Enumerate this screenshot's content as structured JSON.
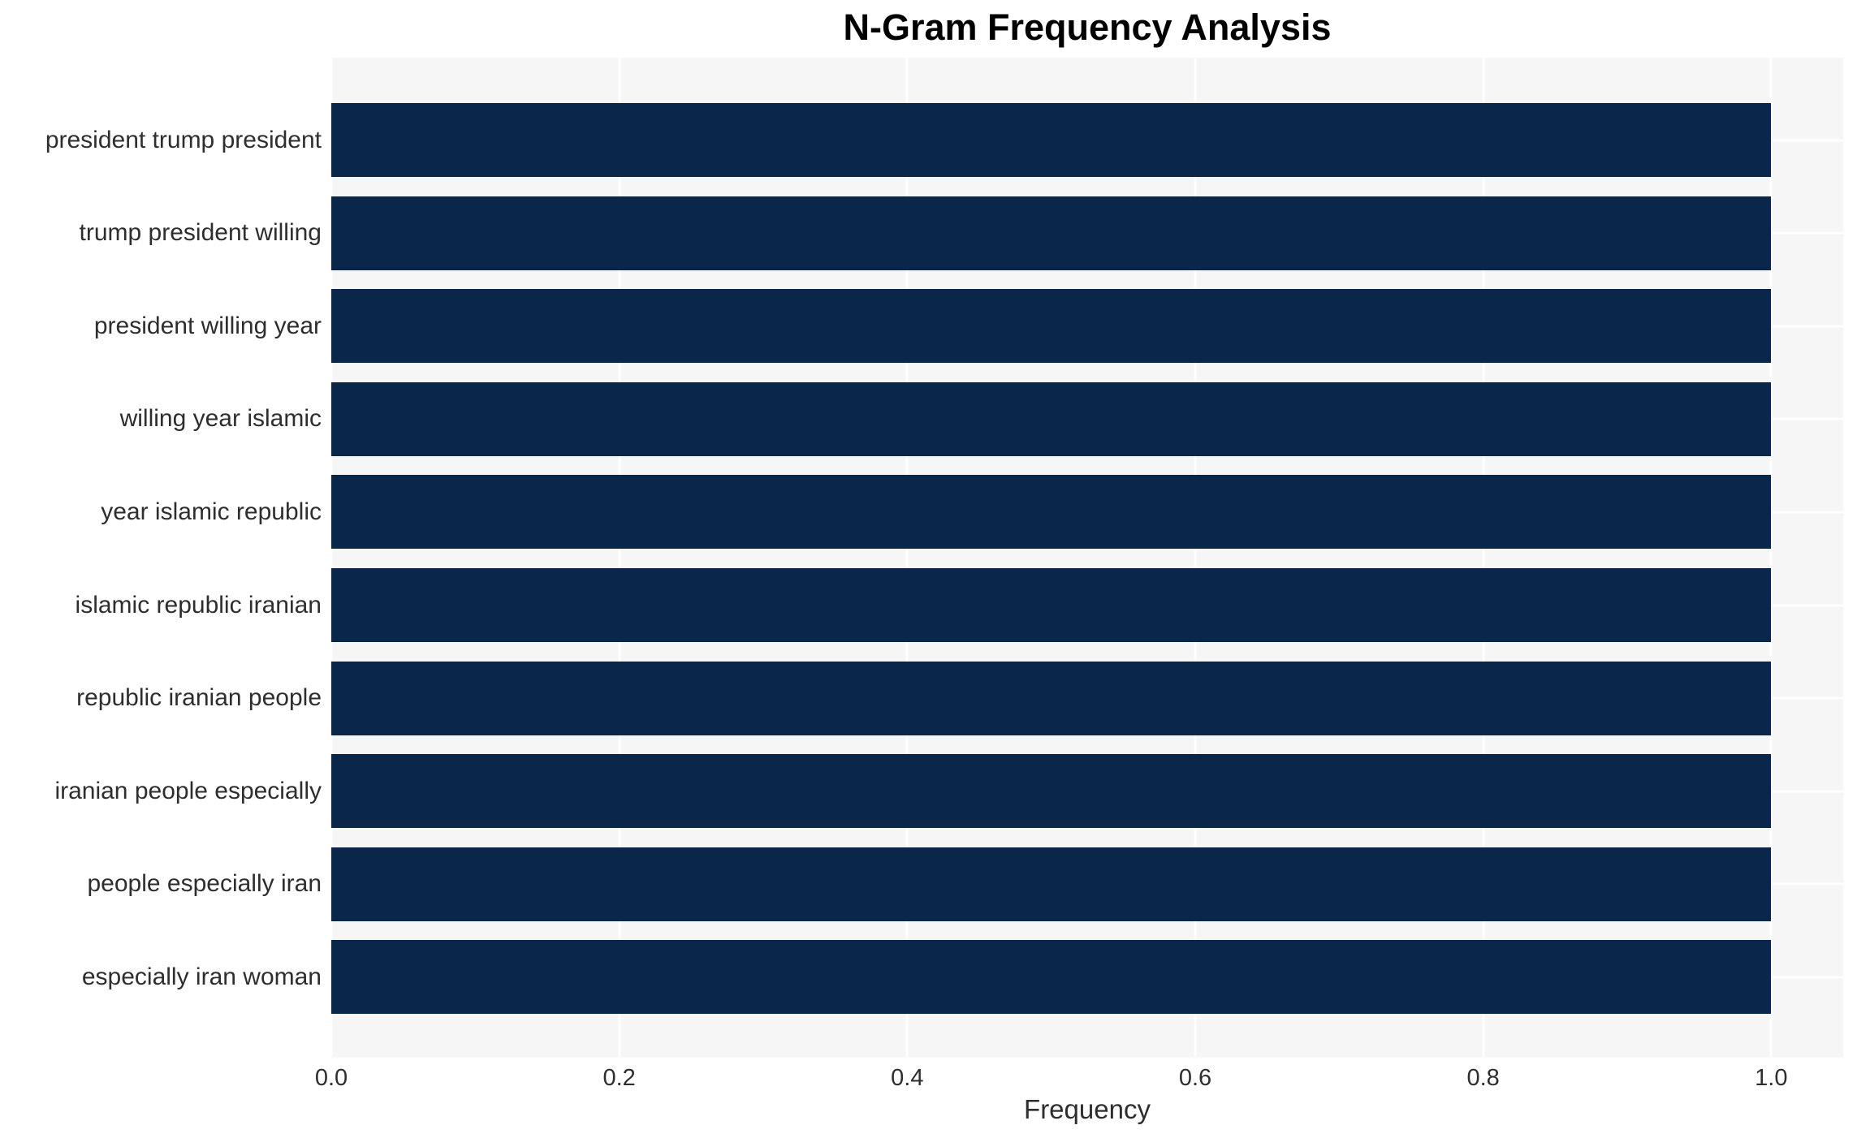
{
  "chart_data": {
    "type": "bar",
    "orientation": "horizontal",
    "title": "N-Gram Frequency Analysis",
    "xlabel": "Frequency",
    "ylabel": "",
    "categories": [
      "president trump president",
      "trump president willing",
      "president willing year",
      "willing year islamic",
      "year islamic republic",
      "islamic republic iranian",
      "republic iranian people",
      "iranian people especially",
      "people especially iran",
      "especially iran woman"
    ],
    "values": [
      1.0,
      1.0,
      1.0,
      1.0,
      1.0,
      1.0,
      1.0,
      1.0,
      1.0,
      1.0
    ],
    "x_ticks": [
      0.0,
      0.2,
      0.4,
      0.6,
      0.8,
      1.0
    ],
    "x_tick_labels": [
      "0.0",
      "0.2",
      "0.4",
      "0.6",
      "0.8",
      "1.0"
    ],
    "xlim": [
      0,
      1.05
    ],
    "grid": true,
    "grid_axis": "both",
    "legend": null,
    "bar_height_ratio": 0.8,
    "colors": {
      "bar": "#0a2749",
      "plot_background": "#f6f6f6",
      "figure_background": "#ffffff",
      "gridline": "#ffffff",
      "title_text": "#000000",
      "label_text": "#2e2e2e"
    }
  }
}
